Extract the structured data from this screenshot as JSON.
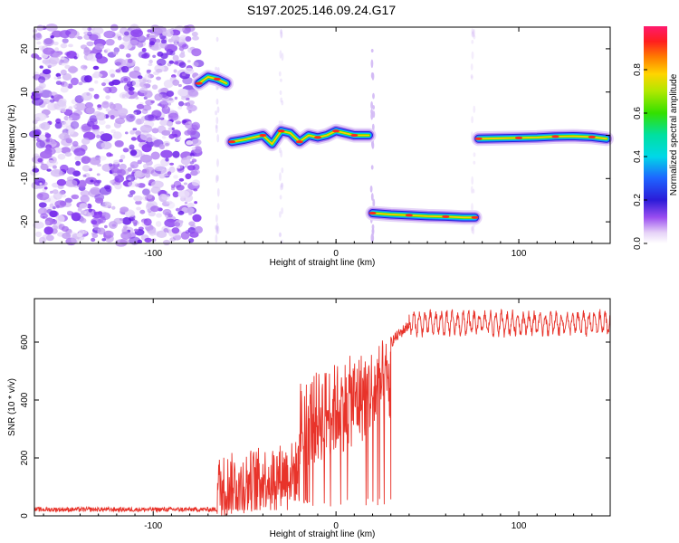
{
  "figure": {
    "title": "S197.2025.146.09.24.G17"
  },
  "chart_data": [
    {
      "type": "heatmap",
      "xlabel": "Height of straight line (km)",
      "ylabel": "Frequency (Hz)",
      "xlim": [
        -165,
        150
      ],
      "ylim": [
        -25,
        25
      ],
      "xticks": [
        -100,
        0,
        100
      ],
      "yticks": [
        -20,
        -10,
        0,
        10,
        20
      ],
      "colorbar": {
        "label": "Normalized spectral amplitude",
        "range": [
          0,
          1
        ],
        "ticks": [
          0.0,
          0.2,
          0.4,
          0.6,
          0.8
        ]
      },
      "tracks": [
        {
          "x": [
            -75,
            -70,
            -65,
            -60
          ],
          "y": [
            12,
            13.5,
            13,
            12
          ]
        },
        {
          "x": [
            -57,
            -50,
            -40,
            -35,
            -30,
            -25,
            -20,
            -15,
            -10,
            -5,
            0,
            5,
            10,
            18
          ],
          "y": [
            -1.5,
            -1,
            0,
            -2,
            1,
            0.5,
            -1.5,
            0,
            -0.5,
            0,
            1,
            0.5,
            0,
            0
          ]
        },
        {
          "x": [
            20,
            30,
            40,
            50,
            60,
            70,
            76
          ],
          "y": [
            -18,
            -18.3,
            -18.5,
            -18.7,
            -18.8,
            -19,
            -19
          ]
        },
        {
          "x": [
            78,
            90,
            100,
            110,
            120,
            130,
            140,
            148
          ],
          "y": [
            -0.8,
            -0.7,
            -0.6,
            -0.5,
            -0.3,
            -0.2,
            -0.4,
            -0.8
          ]
        }
      ],
      "noise_region": [
        -165,
        -75
      ]
    },
    {
      "type": "line",
      "xlabel": "Height of straight line (km)",
      "ylabel": "SNR (10 * v/v)",
      "xlim": [
        -165,
        150
      ],
      "ylim": [
        0,
        750
      ],
      "xticks": [
        -100,
        0,
        100
      ],
      "yticks": [
        0,
        200,
        400,
        600
      ],
      "color": "#e8332a",
      "segments": [
        {
          "x": [
            -165,
            -65
          ],
          "base": 22,
          "amp": 8
        },
        {
          "x": [
            -65,
            -20
          ],
          "base": 100,
          "amp": 110
        },
        {
          "x": [
            -20,
            30
          ],
          "base": 310,
          "amp": 160
        },
        {
          "x": [
            30,
            40
          ],
          "base": 600,
          "amp": 40
        },
        {
          "x": [
            40,
            150
          ],
          "base": 665,
          "amp": 45
        }
      ]
    }
  ]
}
